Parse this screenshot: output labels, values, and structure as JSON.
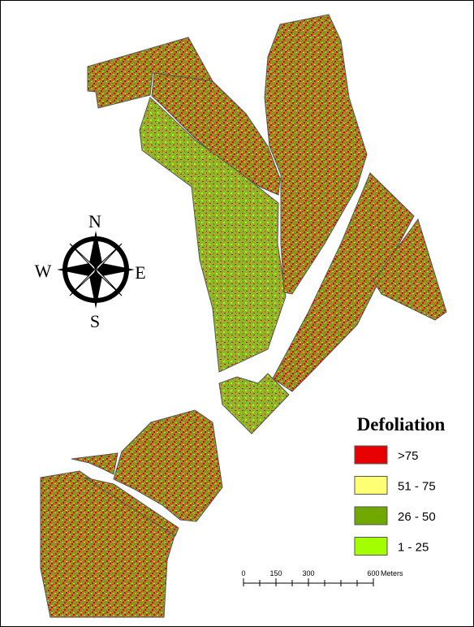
{
  "compass": {
    "north": "N",
    "south": "S",
    "east": "E",
    "west": "W"
  },
  "legend": {
    "title": "Defoliation",
    "items": [
      {
        "label": ">75",
        "color": "#e60000"
      },
      {
        "label": "51 - 75",
        "color": "#ffff73"
      },
      {
        "label": "26 - 50",
        "color": "#70a800"
      },
      {
        "label": "1 - 25",
        "color": "#a3ff00"
      }
    ]
  },
  "scale_bar": {
    "ticks": [
      0,
      150,
      300,
      600
    ],
    "max": 600,
    "unit": "Meters"
  }
}
